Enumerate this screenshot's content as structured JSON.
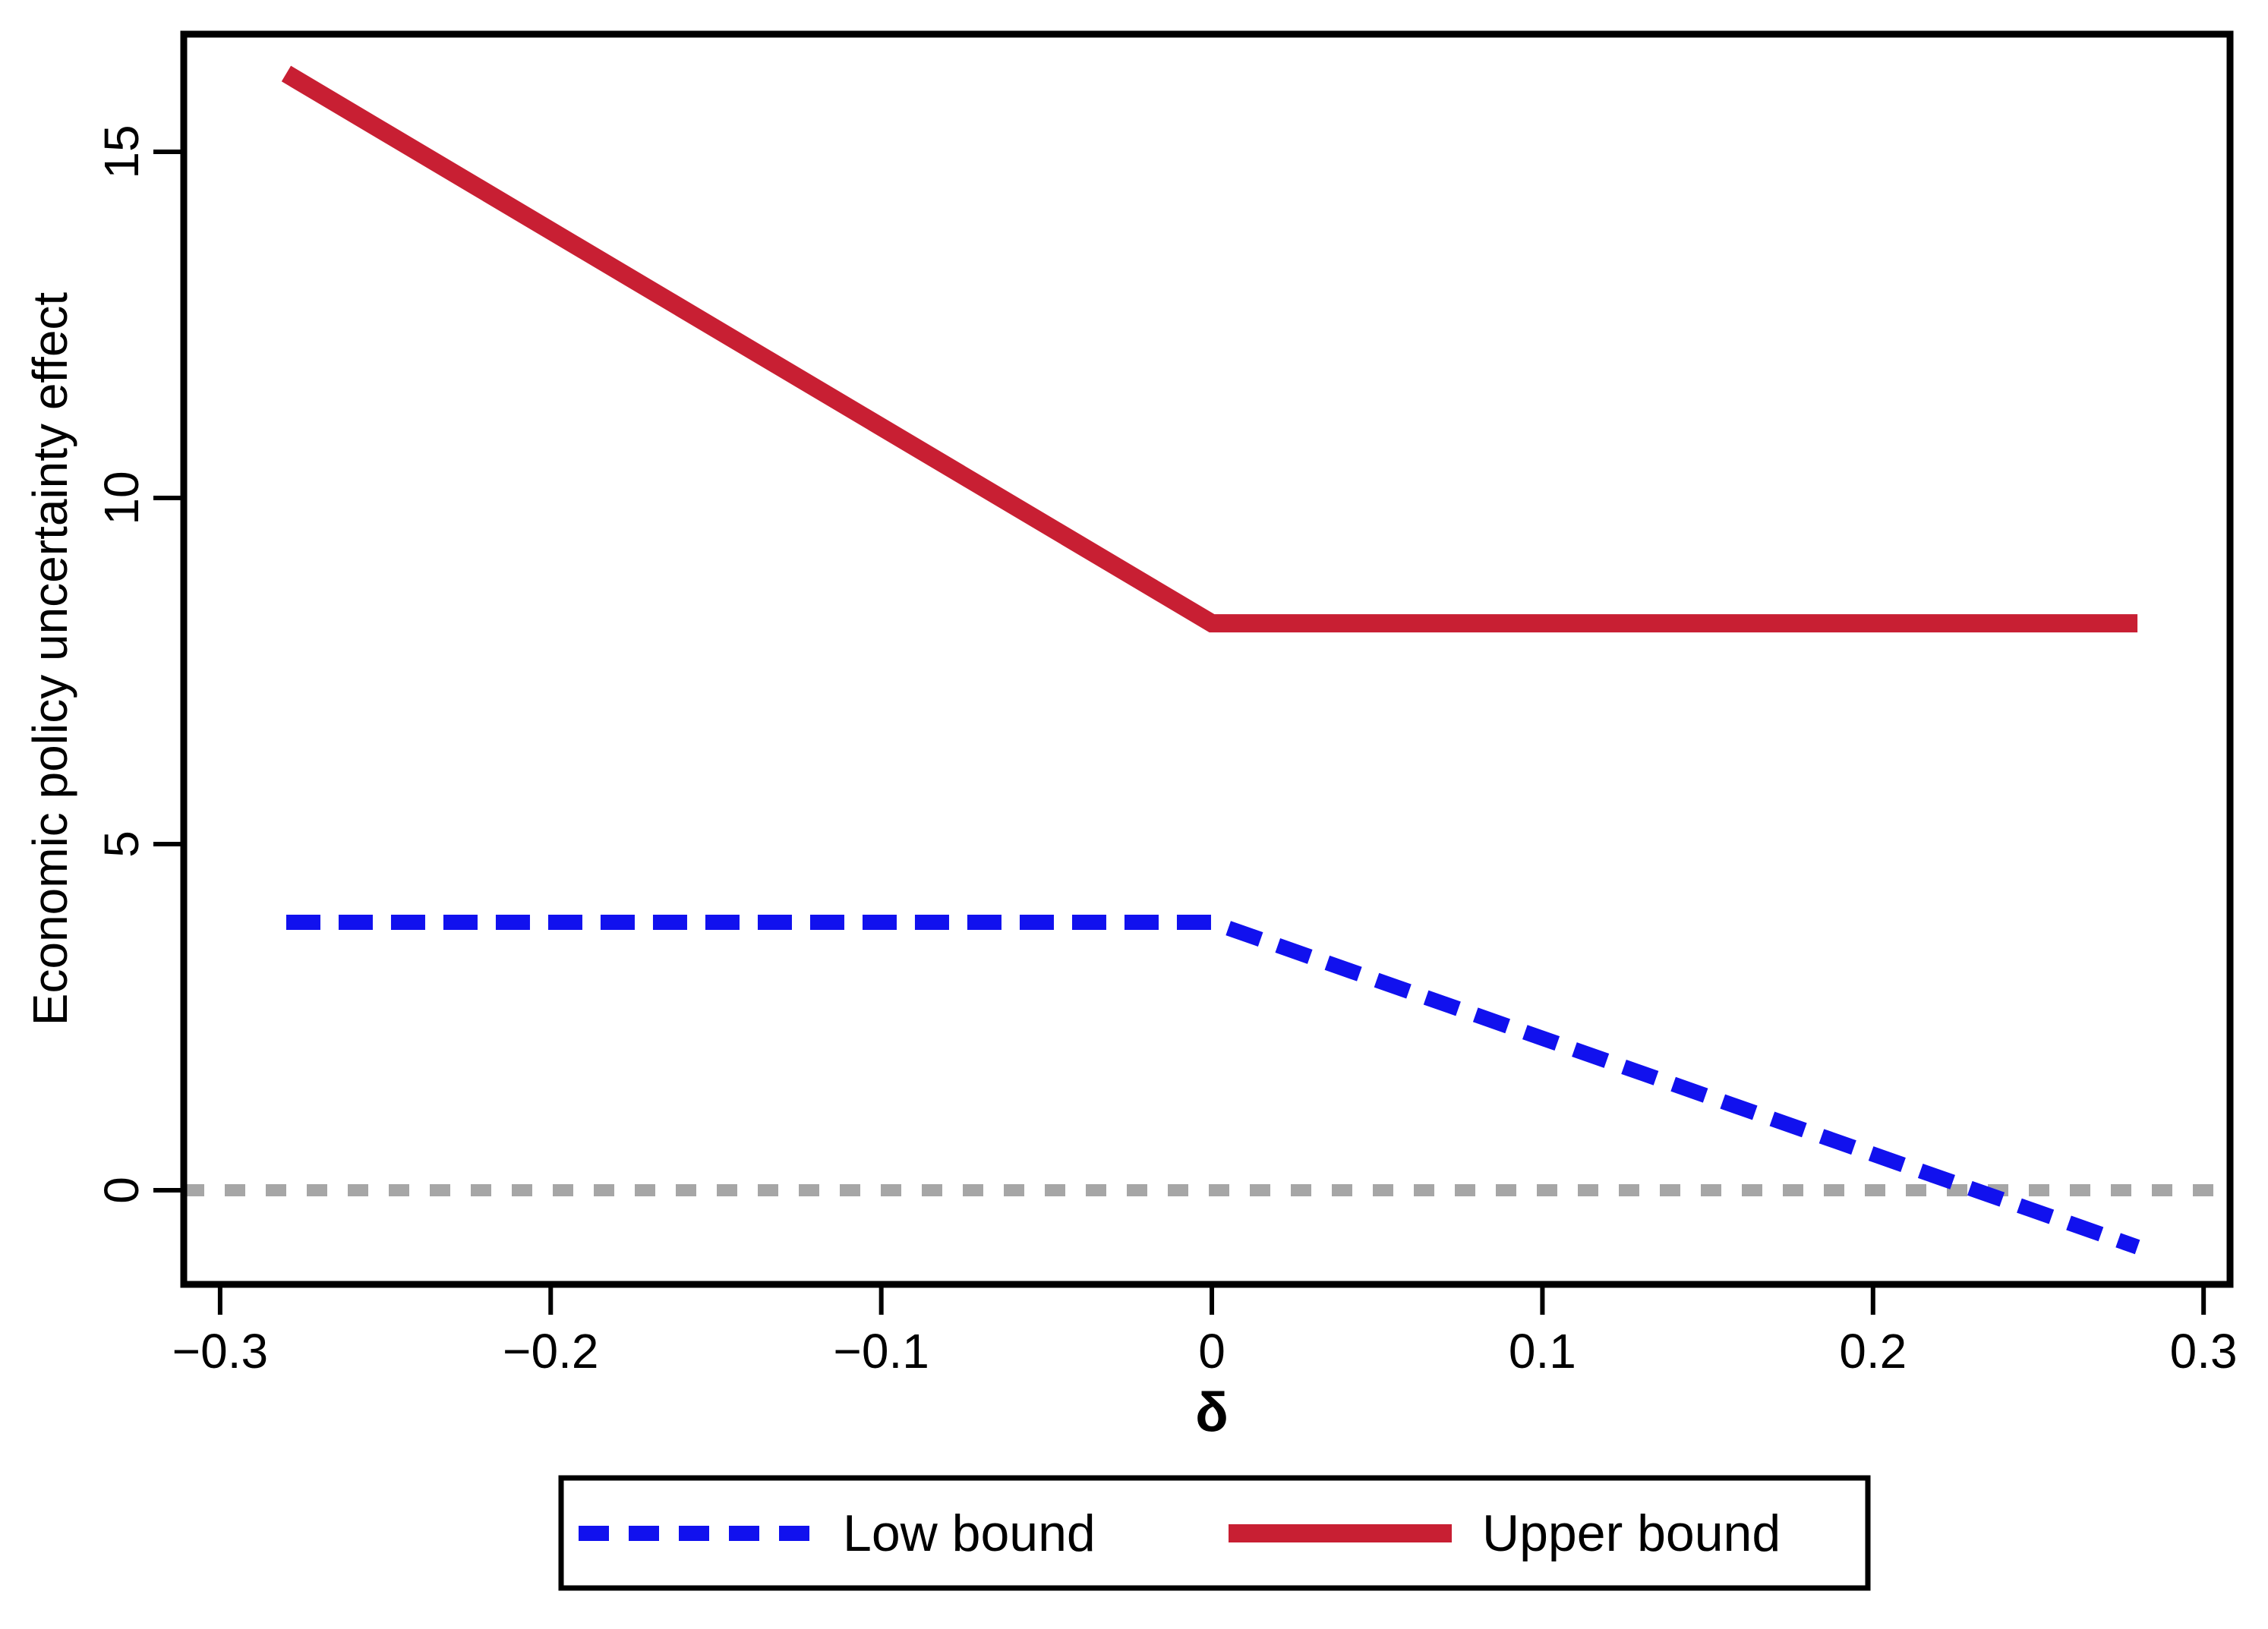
{
  "chart_data": {
    "type": "line",
    "title": "",
    "xlabel": "δ",
    "ylabel": "Economic policy uncertainty effect",
    "xlim": [
      -0.311,
      0.308
    ],
    "ylim": [
      -1.36,
      16.7
    ],
    "grid": false,
    "x_ticks": [
      -0.3,
      -0.2,
      -0.1,
      0,
      0.1,
      0.2,
      0.3
    ],
    "x_tick_labels": [
      "−0.3",
      "−0.2",
      "−0.1",
      "0",
      "0.1",
      "0.2",
      "0.3"
    ],
    "y_ticks": [
      0,
      5,
      10,
      15
    ],
    "y_tick_labels": [
      "0",
      "5",
      "10",
      "15"
    ],
    "reference_line": {
      "y": 0,
      "style": "dotted",
      "color": "#A6A6A6"
    },
    "series": [
      {
        "name": "Low bound",
        "style": "dashed",
        "color": "#1111EE",
        "points": [
          [
            -0.28,
            3.87
          ],
          [
            0,
            3.87
          ],
          [
            0.28,
            -0.82
          ]
        ]
      },
      {
        "name": "Upper bound",
        "style": "solid",
        "color": "#C81F33",
        "points": [
          [
            -0.28,
            16.13
          ],
          [
            0,
            8.19
          ],
          [
            0.28,
            8.19
          ]
        ]
      }
    ],
    "legend": {
      "position": "bottom",
      "border": true,
      "entries": [
        "Low bound",
        "Upper bound"
      ]
    },
    "frame_color": "#000000"
  }
}
